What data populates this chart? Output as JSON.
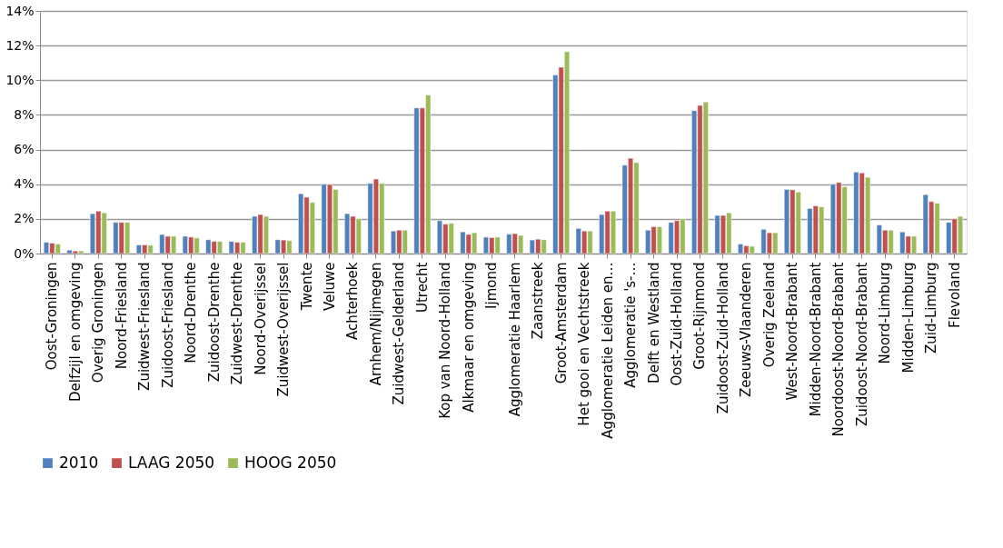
{
  "chart_data": {
    "type": "bar",
    "categories": [
      "Oost-Groningen",
      "Delfzijl en omgeving",
      "Overig Groningen",
      "Noord-Friesland",
      "Zuidwest-Friesland",
      "Zuidoost-Friesland",
      "Noord-Drenthe",
      "Zuidoost-Drenthe",
      "Zuidwest-Drenthe",
      "Noord-Overijssel",
      "Zuidwest-Overijssel",
      "Twente",
      "Veluwe",
      "Achterhoek",
      "Arnhem/Nijmegen",
      "Zuidwest-Gelderland",
      "Utrecht",
      "Kop van Noord-Holland",
      "Alkmaar en omgeving",
      "Ijmond",
      "Agglomeratie Haarlem",
      "Zaanstreek",
      "Groot-Amsterdam",
      "Het gooi en Vechtstreek",
      "Agglomeratie Leiden en…",
      "Agglomeratie 's-…",
      "Delft en Westland",
      "Oost-Zuid-Holland",
      "Groot-Rijnmond",
      "Zuidoost-Zuid-Holland",
      "Zeeuws-Vlaanderen",
      "Overig Zeeland",
      "West-Noord-Brabant",
      "Midden-Noord-Brabant",
      "Noordoost-Noord-Brabant",
      "Zuidoost-Noord-Brabant",
      "Noord-Limburg",
      "Midden-Limburg",
      "Zuid-Limburg",
      "Flevoland"
    ],
    "series": [
      {
        "name": "2010",
        "color": "#4f81bd",
        "values": [
          0.65,
          0.2,
          2.3,
          1.8,
          0.5,
          1.1,
          1.0,
          0.8,
          0.7,
          2.15,
          0.8,
          3.45,
          4.0,
          2.3,
          4.05,
          1.3,
          8.4,
          1.9,
          1.25,
          0.95,
          1.12,
          0.78,
          10.3,
          1.45,
          2.25,
          5.1,
          1.35,
          1.8,
          8.25,
          2.2,
          0.55,
          1.4,
          3.7,
          2.6,
          4.0,
          4.7,
          1.65,
          1.25,
          3.4,
          1.8
        ]
      },
      {
        "name": "LAAG 2050",
        "color": "#c0504d",
        "values": [
          0.6,
          0.15,
          2.45,
          1.8,
          0.5,
          1.0,
          0.95,
          0.7,
          0.65,
          2.25,
          0.78,
          3.25,
          3.98,
          2.15,
          4.3,
          1.35,
          8.4,
          1.7,
          1.1,
          0.92,
          1.15,
          0.83,
          10.75,
          1.3,
          2.45,
          5.5,
          1.55,
          1.9,
          8.55,
          2.2,
          0.45,
          1.2,
          3.68,
          2.75,
          4.1,
          4.65,
          1.35,
          1.0,
          3.0,
          2.0
        ]
      },
      {
        "name": "HOOG 2050",
        "color": "#9bbb59",
        "values": [
          0.55,
          0.15,
          2.35,
          1.8,
          0.48,
          1.0,
          0.9,
          0.7,
          0.65,
          2.15,
          0.75,
          2.95,
          3.7,
          2.0,
          4.05,
          1.35,
          9.15,
          1.75,
          1.2,
          0.95,
          1.05,
          0.8,
          11.65,
          1.3,
          2.45,
          5.25,
          1.55,
          2.0,
          8.75,
          2.35,
          0.42,
          1.2,
          3.55,
          2.7,
          3.85,
          4.4,
          1.35,
          1.0,
          2.9,
          2.15
        ]
      }
    ],
    "ylim": [
      0,
      14
    ],
    "yticks": [
      {
        "value": 0,
        "label": "0%"
      },
      {
        "value": 2,
        "label": "2%"
      },
      {
        "value": 4,
        "label": "4%"
      },
      {
        "value": 6,
        "label": "6%"
      },
      {
        "value": 8,
        "label": "8%"
      },
      {
        "value": 10,
        "label": "10%"
      },
      {
        "value": 12,
        "label": "12%"
      },
      {
        "value": 14,
        "label": "14%"
      }
    ],
    "grid": "y",
    "legend": "bottom"
  }
}
